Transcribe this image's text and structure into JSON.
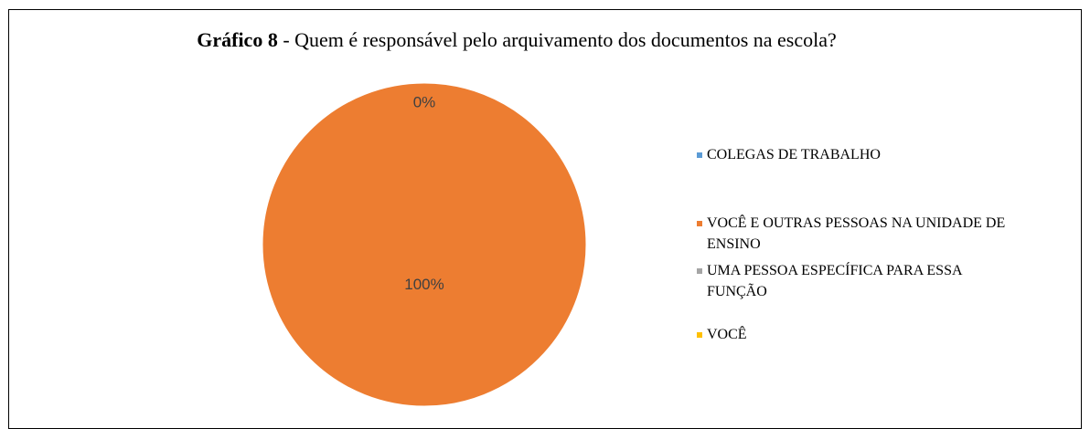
{
  "chart_data": {
    "type": "pie",
    "title_bold": "Gráfico 8",
    "title": "- Quem é responsável pelo arquivamento dos documentos na escola?",
    "categories": [
      "COLEGAS DE TRABALHO",
      "VOCÊ E OUTRAS PESSOAS NA UNIDADE DE ENSINO",
      "UMA PESSOA ESPECÍFICA PARA ESSA FUNÇÃO",
      "VOCÊ"
    ],
    "values": [
      0,
      100,
      0,
      0
    ],
    "value_labels": [
      "0%",
      "100%",
      null,
      null
    ],
    "colors": [
      "#5b9bd5",
      "#ed7d31",
      "#a5a5a5",
      "#ffc000"
    ],
    "legend": "right"
  }
}
